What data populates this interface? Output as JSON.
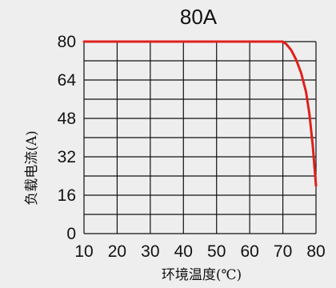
{
  "chart_data": {
    "type": "line",
    "title": "80A",
    "xlabel": "环境温度(℃)",
    "ylabel": "负载电流(A)",
    "xlim": [
      10,
      80
    ],
    "ylim": [
      0,
      80
    ],
    "x_ticks": [
      "10",
      "20",
      "30",
      "40",
      "50",
      "60",
      "70",
      "80"
    ],
    "y_ticks": [
      "0",
      "16",
      "32",
      "48",
      "64",
      "80"
    ],
    "grid": true,
    "series": [
      {
        "color": "#e0201b",
        "points": [
          [
            10,
            80
          ],
          [
            70,
            80
          ],
          [
            71,
            79
          ],
          [
            72.5,
            76.5
          ],
          [
            74,
            72.5
          ],
          [
            75.5,
            67
          ],
          [
            77,
            59
          ],
          [
            78,
            50
          ],
          [
            79,
            37
          ],
          [
            80,
            20
          ]
        ]
      }
    ]
  }
}
